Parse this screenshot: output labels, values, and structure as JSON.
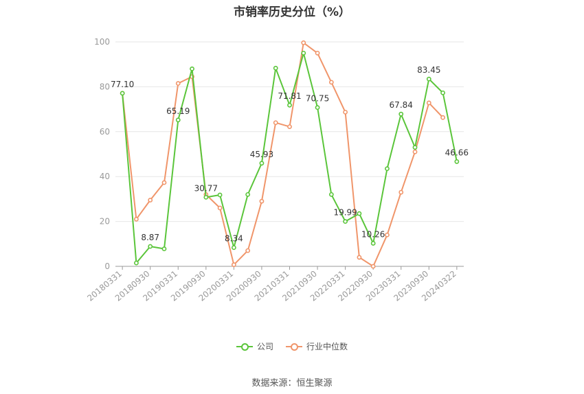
{
  "chart_data": {
    "type": "line",
    "title": "市销率历史分位（%）",
    "categories": [
      "20180331",
      "20180630",
      "20180930",
      "20181231",
      "20190331",
      "20190630",
      "20190930",
      "20191231",
      "20200331",
      "20200630",
      "20200930",
      "20201231",
      "20210331",
      "20210630",
      "20210930",
      "20211231",
      "20220331",
      "20220630",
      "20220930",
      "20221231",
      "20230331",
      "20230630",
      "20230930",
      "20231231",
      "20240322"
    ],
    "x_tick_labels": [
      "20180331",
      "20180930",
      "20190331",
      "20190930",
      "20200331",
      "20200930",
      "20210331",
      "20210930",
      "20220331",
      "20220930",
      "20230331",
      "20230930",
      "20240322"
    ],
    "ylim": [
      0,
      100
    ],
    "y_ticks": [
      0,
      20,
      40,
      60,
      80,
      100
    ],
    "grid": true,
    "legend_position": "bottom",
    "series": [
      {
        "name": "公司",
        "color": "#5ac53a",
        "values": [
          77.1,
          1.5,
          8.87,
          7.8,
          65.19,
          88,
          30.77,
          31.8,
          8.34,
          32,
          45.93,
          88.3,
          71.81,
          95,
          70.75,
          32,
          19.99,
          23.5,
          10.26,
          43.5,
          67.84,
          53,
          83.45,
          77.3,
          46.66
        ]
      },
      {
        "name": "行业中位数",
        "color": "#f0956a",
        "values": [
          77.1,
          21,
          29.5,
          37.3,
          81.5,
          84.5,
          32,
          26,
          0.7,
          7,
          29,
          64,
          62.2,
          99.6,
          95,
          82,
          68.7,
          4,
          0,
          14,
          33,
          51,
          72.8,
          66.3,
          null
        ]
      }
    ],
    "data_labels": [
      {
        "series": 0,
        "index": 0,
        "text": "77.10"
      },
      {
        "series": 0,
        "index": 2,
        "text": "8.87"
      },
      {
        "series": 0,
        "index": 4,
        "text": "65.19"
      },
      {
        "series": 0,
        "index": 6,
        "text": "30.77"
      },
      {
        "series": 0,
        "index": 8,
        "text": "8.34"
      },
      {
        "series": 0,
        "index": 10,
        "text": "45.93"
      },
      {
        "series": 0,
        "index": 12,
        "text": "71.81"
      },
      {
        "series": 0,
        "index": 14,
        "text": "70.75"
      },
      {
        "series": 0,
        "index": 16,
        "text": "19.99"
      },
      {
        "series": 0,
        "index": 18,
        "text": "10.26"
      },
      {
        "series": 0,
        "index": 20,
        "text": "67.84"
      },
      {
        "series": 0,
        "index": 22,
        "text": "83.45"
      },
      {
        "series": 0,
        "index": 24,
        "text": "46.66"
      }
    ]
  },
  "legend": {
    "company": "公司",
    "industry": "行业中位数"
  },
  "source": "数据来源：恒生聚源"
}
